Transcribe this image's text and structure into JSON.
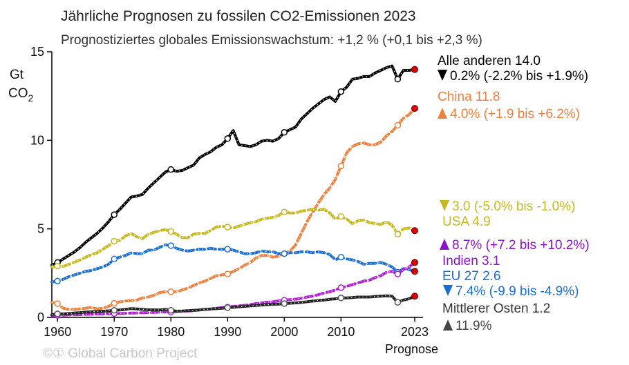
{
  "chart_data": {
    "type": "line",
    "title": "Jährliche Prognosen zu fossilen CO2-Emissionen 2023",
    "subtitle": "Prognostiziertes globales Emissionswachstum: +1,2 % (+0,1 bis +2,3 %)",
    "ylabel_line1": "Gt",
    "ylabel_line2": "CO",
    "ylabel_sub": "2",
    "ylim": [
      0,
      15
    ],
    "xlim": [
      1959,
      2023
    ],
    "xticks": [
      1960,
      1970,
      1980,
      1990,
      2000,
      2010,
      2023
    ],
    "yticks": [
      0,
      5,
      10,
      15
    ],
    "xlabel_extra": "Prognose",
    "credit": "©① Global Carbon Project",
    "x": [
      1959,
      1960,
      1961,
      1962,
      1963,
      1964,
      1965,
      1966,
      1967,
      1968,
      1969,
      1970,
      1971,
      1972,
      1973,
      1974,
      1975,
      1976,
      1977,
      1978,
      1979,
      1980,
      1981,
      1982,
      1983,
      1984,
      1985,
      1986,
      1987,
      1988,
      1989,
      1990,
      1991,
      1992,
      1993,
      1994,
      1995,
      1996,
      1997,
      1998,
      1999,
      2000,
      2001,
      2002,
      2003,
      2004,
      2005,
      2006,
      2007,
      2008,
      2009,
      2010,
      2011,
      2012,
      2013,
      2014,
      2015,
      2016,
      2017,
      2018,
      2019,
      2020,
      2021,
      2022,
      2023
    ],
    "series": [
      {
        "name": "Alle anderen",
        "color": "#000000",
        "dash": "solid",
        "values": [
          2.95,
          3.1,
          3.3,
          3.5,
          3.7,
          3.95,
          4.25,
          4.5,
          4.75,
          5.05,
          5.4,
          5.8,
          6.1,
          6.45,
          6.8,
          6.85,
          6.95,
          7.3,
          7.6,
          7.9,
          8.2,
          8.35,
          8.25,
          8.3,
          8.45,
          8.6,
          9.0,
          9.2,
          9.35,
          9.6,
          9.75,
          10.1,
          10.55,
          9.75,
          9.7,
          9.65,
          9.75,
          9.95,
          10.0,
          9.95,
          10.1,
          10.45,
          10.6,
          10.75,
          11.2,
          11.5,
          11.8,
          12.05,
          12.3,
          12.45,
          12.2,
          12.75,
          13.0,
          13.45,
          13.5,
          13.6,
          13.6,
          13.8,
          13.95,
          14.1,
          14.2,
          13.45,
          13.95,
          13.95,
          14.0
        ],
        "markers": [
          1960,
          1970,
          1980,
          1990,
          2000,
          2010,
          2020
        ],
        "value_label": "Alle anderen 14.0",
        "change_label": "0.2% (-2.2% bis +1.9%)",
        "change_dir": "down",
        "change_color": "#000000"
      },
      {
        "name": "China",
        "color": "#f07f3c",
        "dash": "dashed",
        "values": [
          0.85,
          0.78,
          0.52,
          0.45,
          0.45,
          0.48,
          0.52,
          0.56,
          0.48,
          0.52,
          0.62,
          0.8,
          0.88,
          0.92,
          0.95,
          0.98,
          1.1,
          1.15,
          1.25,
          1.4,
          1.45,
          1.45,
          1.45,
          1.55,
          1.65,
          1.8,
          1.95,
          2.05,
          2.2,
          2.35,
          2.4,
          2.45,
          2.6,
          2.75,
          2.95,
          3.1,
          3.35,
          3.5,
          3.5,
          3.4,
          3.45,
          3.6,
          3.75,
          4.1,
          4.75,
          5.4,
          5.95,
          6.45,
          6.95,
          7.3,
          7.8,
          8.55,
          9.3,
          9.65,
          9.8,
          9.85,
          9.75,
          9.75,
          9.9,
          10.25,
          10.5,
          10.85,
          11.25,
          11.45,
          11.8
        ],
        "markers": [
          1960,
          1970,
          1980,
          1990,
          2000,
          2010,
          2020
        ],
        "value_label": "China 11.8",
        "change_label": "4.0% (+1.9 bis +6.2%)",
        "change_dir": "up",
        "change_color": "#f07f3c"
      },
      {
        "name": "USA",
        "color": "#c8b91e",
        "dash": "dashed",
        "values": [
          2.85,
          2.9,
          2.88,
          3.0,
          3.12,
          3.25,
          3.4,
          3.55,
          3.65,
          3.85,
          4.05,
          4.3,
          4.35,
          4.6,
          4.75,
          4.55,
          4.45,
          4.7,
          4.8,
          4.9,
          4.95,
          4.85,
          4.7,
          4.5,
          4.5,
          4.7,
          4.75,
          4.75,
          4.9,
          5.1,
          5.15,
          5.1,
          5.05,
          5.15,
          5.25,
          5.35,
          5.4,
          5.55,
          5.6,
          5.65,
          5.75,
          5.95,
          5.9,
          5.9,
          6.0,
          6.05,
          6.1,
          6.05,
          6.1,
          5.9,
          5.55,
          5.7,
          5.55,
          5.3,
          5.45,
          5.5,
          5.35,
          5.3,
          5.25,
          5.4,
          5.2,
          4.7,
          5.0,
          5.05,
          4.9
        ],
        "markers": [
          1960,
          1970,
          1980,
          1990,
          2000,
          2010,
          2020
        ],
        "value_label": "USA 4.9",
        "change_label": "3.0 (-5.0% bis -1.0%)",
        "change_dir": "down",
        "change_color": "#c8b91e"
      },
      {
        "name": "EU 27",
        "color": "#1a6fd6",
        "dash": "dashed",
        "values": [
          2.0,
          2.05,
          2.15,
          2.3,
          2.4,
          2.5,
          2.6,
          2.65,
          2.75,
          2.85,
          3.0,
          3.3,
          3.4,
          3.5,
          3.65,
          3.6,
          3.6,
          3.8,
          3.8,
          3.95,
          4.1,
          4.05,
          3.9,
          3.8,
          3.75,
          3.8,
          3.85,
          3.85,
          3.9,
          3.85,
          3.85,
          3.85,
          3.8,
          3.7,
          3.6,
          3.6,
          3.65,
          3.75,
          3.7,
          3.7,
          3.6,
          3.6,
          3.65,
          3.65,
          3.7,
          3.7,
          3.65,
          3.7,
          3.65,
          3.55,
          3.25,
          3.4,
          3.3,
          3.25,
          3.15,
          3.0,
          3.05,
          3.05,
          3.1,
          3.0,
          2.85,
          2.55,
          2.75,
          2.7,
          2.6
        ],
        "markers": [
          1960,
          1970,
          1980,
          1990,
          2000,
          2010,
          2020
        ],
        "value_label": "EU 27 2.6",
        "change_label": "7.4% (-9.9 bis -4.9%)",
        "change_dir": "down",
        "change_color": "#1a6fd6"
      },
      {
        "name": "Indien",
        "color": "#b11fd6",
        "dash": "dashed",
        "values": [
          0.12,
          0.12,
          0.13,
          0.14,
          0.15,
          0.16,
          0.17,
          0.18,
          0.19,
          0.2,
          0.21,
          0.22,
          0.22,
          0.23,
          0.24,
          0.25,
          0.26,
          0.27,
          0.28,
          0.3,
          0.3,
          0.3,
          0.33,
          0.35,
          0.36,
          0.38,
          0.42,
          0.45,
          0.48,
          0.52,
          0.55,
          0.58,
          0.62,
          0.65,
          0.68,
          0.72,
          0.78,
          0.82,
          0.86,
          0.88,
          0.93,
          0.97,
          1.0,
          1.03,
          1.08,
          1.15,
          1.2,
          1.28,
          1.38,
          1.45,
          1.55,
          1.68,
          1.75,
          1.85,
          1.95,
          2.05,
          2.1,
          2.25,
          2.35,
          2.55,
          2.6,
          2.45,
          2.7,
          2.85,
          3.1
        ],
        "markers": [
          1960,
          1970,
          1980,
          1990,
          2000,
          2010,
          2020
        ],
        "value_label": "Indien 3.1",
        "change_label": "8.7% (+7.2 bis +10.2%)",
        "change_dir": "up",
        "change_color": "#8a12c8"
      },
      {
        "name": "Mittlerer Osten",
        "color": "#222222",
        "dash": "solid",
        "values": [
          0.15,
          0.2,
          0.2,
          0.22,
          0.25,
          0.27,
          0.3,
          0.32,
          0.33,
          0.35,
          0.37,
          0.4,
          0.42,
          0.45,
          0.5,
          0.48,
          0.45,
          0.43,
          0.43,
          0.42,
          0.45,
          0.4,
          0.35,
          0.36,
          0.38,
          0.4,
          0.42,
          0.45,
          0.47,
          0.5,
          0.52,
          0.55,
          0.57,
          0.6,
          0.62,
          0.65,
          0.67,
          0.7,
          0.72,
          0.74,
          0.75,
          0.78,
          0.8,
          0.82,
          0.85,
          0.88,
          0.92,
          0.95,
          0.98,
          1.02,
          1.05,
          1.1,
          1.1,
          1.12,
          1.15,
          1.15,
          1.15,
          1.18,
          1.2,
          1.22,
          1.2,
          0.85,
          0.98,
          1.05,
          1.2
        ],
        "markers": [
          1960,
          1970,
          1980,
          1990,
          2000,
          2010,
          2020
        ],
        "value_label": "Mittlerer Osten 1.2",
        "change_label": "11.9%",
        "change_dir": "up",
        "change_color": "#444444"
      }
    ],
    "projection_marker_color": "#e00000"
  }
}
